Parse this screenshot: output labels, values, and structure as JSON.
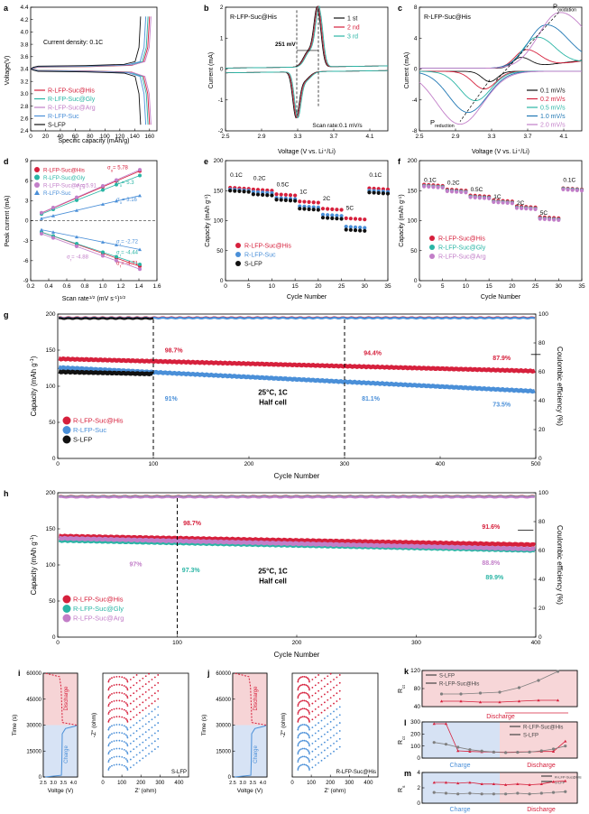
{
  "colors": {
    "red": "#d6203c",
    "pink": "#e04a6a",
    "teal": "#2ab5a5",
    "purple": "#c27ec8",
    "blue": "#4a8fd8",
    "black": "#111111",
    "gray": "#7f7f7f",
    "steel": "#1f77b4"
  },
  "chart_data": [
    {
      "id": "a",
      "type": "line",
      "panel_label": "a",
      "xlabel": "Specific capacity (mAh/g)",
      "ylabel": "Voltage(V)",
      "xlim": [
        0,
        170
      ],
      "ylim": [
        2.4,
        4.4
      ],
      "xticks": [
        "0",
        "20",
        "40",
        "60",
        "80",
        "100",
        "120",
        "140",
        "160"
      ],
      "yticks": [
        "2.4",
        "2.6",
        "2.8",
        "3.0",
        "3.2",
        "3.4",
        "3.6",
        "3.8",
        "4.0",
        "4.2",
        "4.4"
      ],
      "annotation": "Current density: 0.1C",
      "series": [
        {
          "name": "R-LFP-Suc@His",
          "capacity": 160
        },
        {
          "name": "R-LFP-Suc@Gly",
          "capacity": 158
        },
        {
          "name": "R-LFP-Suc@Arg",
          "capacity": 162
        },
        {
          "name": "R-LFP-Suc",
          "capacity": 155
        },
        {
          "name": "S-LFP",
          "capacity": 148
        }
      ]
    },
    {
      "id": "b",
      "type": "line",
      "panel_label": "b",
      "title": "R-LFP-Suc@His",
      "xlabel": "Voltage (V vs. Li⁺/Li)",
      "ylabel": "Current (mA)",
      "xlim": [
        2.5,
        4.3
      ],
      "ylim": [
        -2,
        2
      ],
      "xticks": [
        "2.5",
        "2.9",
        "3.3",
        "3.7",
        "4.1"
      ],
      "yticks": [
        "-2",
        "-1",
        "0",
        "1",
        "2"
      ],
      "annotation": "251 mV",
      "note": "Scan rate:0.1 mV/s",
      "series": [
        {
          "name": "1 st",
          "ox": 3.52,
          "red": 3.28
        },
        {
          "name": "2 nd",
          "ox": 3.53,
          "red": 3.29
        },
        {
          "name": "3 rd",
          "ox": 3.54,
          "red": 3.3
        }
      ]
    },
    {
      "id": "c",
      "type": "line",
      "panel_label": "c",
      "title": "R-LFP-Suc@His",
      "xlabel": "Voltage (V vs. Li⁺/Li)",
      "ylabel": "Current (mA)",
      "xlim": [
        2.5,
        4.3
      ],
      "ylim": [
        -8,
        8
      ],
      "xticks": [
        "2.5",
        "2.9",
        "3.3",
        "3.7",
        "4.1"
      ],
      "yticks": [
        "-8",
        "-4",
        "0",
        "4",
        "8"
      ],
      "oxidation_label": "P",
      "oxidation_sub": "oxidation",
      "reduction_label": "P",
      "reduction_sub": "reduction",
      "series": [
        {
          "name": "0.1 mV/s",
          "ox": 3.62,
          "red": 3.28,
          "peak": 1.4
        },
        {
          "name": "0.2 mV/s",
          "ox": 3.68,
          "red": 3.22,
          "peak": 2.4
        },
        {
          "name": "0.5 mV/s",
          "ox": 3.8,
          "red": 3.12,
          "peak": 4.0
        },
        {
          "name": "1.0 mV/s",
          "ox": 3.9,
          "red": 3.04,
          "peak": 5.6
        },
        {
          "name": "2.0 mV/s",
          "ox": 4.05,
          "red": 2.95,
          "peak": 7.2
        }
      ]
    },
    {
      "id": "d",
      "type": "scatter",
      "panel_label": "d",
      "xlabel": "Scan rate",
      "xlabel_sup": "1/2",
      "xunit": " (mV s",
      "xunit_sup": "-1",
      "xunit_end": ")",
      "xunit_end_sup": "1/2",
      "ylabel": "Peak current (mA)",
      "xlim": [
        0.2,
        1.6
      ],
      "ylim": [
        -9,
        9
      ],
      "xticks": [
        "0.2",
        "0.4",
        "0.6",
        "0.8",
        "1.0",
        "1.2",
        "1.4",
        "1.6"
      ],
      "yticks": [
        "-9",
        "-6",
        "-3",
        "0",
        "3",
        "6",
        "9"
      ],
      "x": [
        0.32,
        0.45,
        0.71,
        1.0,
        1.15,
        1.41
      ],
      "series": [
        {
          "name": "R-LFP-Suc@His",
          "ox_slope": 5.78,
          "red_slope": -4.71,
          "ox_label": "σ",
          "ox_val": "= 5.78",
          "red_label": "σ",
          "red_val": "= -4.71"
        },
        {
          "name": "R-LFP-Suc@Gly",
          "ox_slope": 5.3,
          "red_slope": -4.44,
          "ox_label": "σ",
          "ox_val": "= 5.3",
          "red_label": "σ",
          "red_val": "= -4.44"
        },
        {
          "name": "R-LFP-Suc@Arg",
          "ox_slope": 5.91,
          "red_slope": -4.88,
          "ox_label": "σ",
          "ox_val": "= 5.91",
          "red_label": "σ",
          "red_val": "= -4.88"
        },
        {
          "name": "R-LFP-Suc",
          "ox_slope": 3.16,
          "red_slope": -2.72,
          "ox_label": "σ",
          "ox_val": "= 3.16",
          "red_label": "σ",
          "red_val": "= -2.72"
        }
      ]
    },
    {
      "id": "e",
      "type": "scatter",
      "panel_label": "e",
      "xlabel": "Cycle Number",
      "ylabel": "Capacity (mAh g",
      "ylabel_sup": "-1",
      "ylabel_end": ")",
      "xlim": [
        0,
        35
      ],
      "ylim": [
        0,
        200
      ],
      "xticks": [
        "0",
        "5",
        "10",
        "15",
        "20",
        "25",
        "30",
        "35"
      ],
      "yticks": [
        "0",
        "50",
        "100",
        "150",
        "200"
      ],
      "rates": [
        "0.1C",
        "0.2C",
        "0.5C",
        "1C",
        "2C",
        "5C",
        "0.1C"
      ],
      "series": [
        {
          "name": "R-LFP-Suc@His",
          "values": [
            155,
            152,
            144,
            132,
            120,
            104,
            154
          ]
        },
        {
          "name": "R-LFP-Suc",
          "values": [
            152,
            148,
            138,
            124,
            110,
            90,
            150
          ]
        },
        {
          "name": "S-LFP",
          "values": [
            150,
            144,
            135,
            120,
            105,
            85,
            147
          ]
        }
      ]
    },
    {
      "id": "f",
      "type": "scatter",
      "panel_label": "f",
      "xlabel": "Cycle Number",
      "ylabel": "Capacity (mAh g",
      "ylabel_sup": "-1",
      "ylabel_end": ")",
      "xlim": [
        0,
        35
      ],
      "ylim": [
        0,
        200
      ],
      "xticks": [
        "0",
        "5",
        "10",
        "15",
        "20",
        "25",
        "30",
        "35"
      ],
      "yticks": [
        "0",
        "50",
        "100",
        "150",
        "200"
      ],
      "rates": [
        "0.1C",
        "0.2C",
        "0.5C",
        "1C",
        "2C",
        "5C",
        "0.1C"
      ],
      "series": [
        {
          "name": "R-LFP-Suc@His",
          "values": [
            160,
            152,
            142,
            134,
            124,
            106,
            154
          ]
        },
        {
          "name": "R-LFP-Suc@Gly",
          "values": [
            158,
            150,
            140,
            132,
            122,
            104,
            153
          ]
        },
        {
          "name": "R-LFP-Suc@Arg",
          "values": [
            157,
            149,
            139,
            131,
            121,
            103,
            152
          ]
        }
      ]
    },
    {
      "id": "g",
      "type": "scatter",
      "panel_label": "g",
      "xlabel": "Cycle Number",
      "ylabel": "Capacity (mAh g",
      "ylabel_sup": "-1",
      "ylabel_end": ")",
      "y2label": "Coulombic efficiency (%)",
      "xlim": [
        0,
        500
      ],
      "ylim": [
        0,
        200
      ],
      "y2lim": [
        0,
        100
      ],
      "xticks": [
        "0",
        "100",
        "200",
        "300",
        "400",
        "500"
      ],
      "yticks": [
        "0",
        "50",
        "100",
        "150",
        "200"
      ],
      "y2ticks": [
        "0",
        "20",
        "40",
        "60",
        "80",
        "100"
      ],
      "condition": "25°C, 1C",
      "condition2": "Half cell",
      "series": [
        {
          "name": "R-LFP-Suc@His",
          "start": 138,
          "end": 121,
          "cycles": 500
        },
        {
          "name": "R-LFP-Suc",
          "start": 126,
          "end": 93,
          "cycles": 500
        },
        {
          "name": "S-LFP",
          "start": 120,
          "end": 117,
          "cycles": 100
        }
      ],
      "annotations": [
        "98.7%",
        "94.4%",
        "87.9%",
        "91%",
        "81.1%",
        "73.5%"
      ]
    },
    {
      "id": "h",
      "type": "scatter",
      "panel_label": "h",
      "xlabel": "Cycle Number",
      "ylabel": "Capacity (mAh g",
      "ylabel_sup": "-1",
      "ylabel_end": ")",
      "y2label": "Coulombic efficiency (%)",
      "xlim": [
        0,
        400
      ],
      "ylim": [
        0,
        200
      ],
      "y2lim": [
        0,
        100
      ],
      "xticks": [
        "0",
        "100",
        "200",
        "300",
        "400"
      ],
      "yticks": [
        "0",
        "50",
        "100",
        "150",
        "200"
      ],
      "y2ticks": [
        "0",
        "20",
        "40",
        "60",
        "80",
        "100"
      ],
      "condition": "25°C, 1C",
      "condition2": "Half cell",
      "series": [
        {
          "name": "R-LFP-Suc@His",
          "start": 140,
          "end": 128
        },
        {
          "name": "R-LFP-Suc@Gly",
          "start": 134,
          "end": 120
        },
        {
          "name": "R-LFP-Suc@Arg",
          "start": 137,
          "end": 122
        }
      ],
      "annotations": [
        "98.7%",
        "91.6%",
        "97%",
        "97.3%",
        "88.8%",
        "89.9%"
      ]
    },
    {
      "id": "i",
      "type": "line",
      "panel_label": "i",
      "xlabel_left": "Voltge (V)",
      "xticks_left": [
        "2.5",
        "3.0",
        "3.5",
        "4.0"
      ],
      "ylabel_left": "Time (s)",
      "yticks": [
        "0",
        "15000",
        "30000",
        "45000",
        "60000"
      ],
      "discharge": "Discharge",
      "charge": "Charge",
      "xlabel_right": "Z' (ohm)",
      "ylabel_right": "-Z'' (ohm)",
      "xticks_right": [
        "0",
        "100",
        "200",
        "300",
        "400"
      ],
      "sample": "S-LFP"
    },
    {
      "id": "j",
      "type": "line",
      "panel_label": "j",
      "xlabel_left": "Voltge (V)",
      "xticks_left": [
        "2.5",
        "3.0",
        "3.5",
        "4.0"
      ],
      "ylabel_left": "Time (s)",
      "yticks": [
        "0",
        "15000",
        "30000",
        "45000",
        "60000"
      ],
      "discharge": "Discharge",
      "charge": "Charge",
      "xlabel_right": "Z' (ohm)",
      "ylabel_right": "-Z'' (ohm)",
      "xticks_right": [
        "0",
        "100",
        "200",
        "300",
        "400"
      ],
      "sample": "R-LFP-Suc@His"
    },
    {
      "id": "k",
      "type": "line",
      "panel_label": "k",
      "ylabel": "R",
      "ylabel_sub": "ct",
      "yticks": [
        "40",
        "80",
        "120"
      ],
      "ylim": [
        40,
        120
      ],
      "band": "Discharge",
      "series": [
        {
          "name": "S-LFP",
          "values": [
            68,
            68,
            70,
            72,
            82,
            98,
            118
          ]
        },
        {
          "name": "R-LFP-Suc@His",
          "values": [
            52,
            52,
            50,
            50,
            52,
            54,
            54
          ]
        }
      ]
    },
    {
      "id": "l",
      "type": "line",
      "panel_label": "l",
      "ylabel": "R",
      "ylabel_sub": "ct",
      "yticks": [
        "0",
        "100",
        "200",
        "300"
      ],
      "ylim": [
        0,
        300
      ],
      "band_left": "Charge",
      "band_right": "Discharge",
      "series": [
        {
          "name": "R-LFP-Suc@His",
          "values": [
            285,
            285,
            60,
            55,
            52,
            50,
            48,
            50,
            52,
            55,
            55,
            140
          ]
        },
        {
          "name": "S-LFP",
          "values": [
            130,
            115,
            90,
            70,
            58,
            50,
            45,
            48,
            50,
            60,
            75,
            100
          ]
        }
      ]
    },
    {
      "id": "m",
      "type": "line",
      "panel_label": "m",
      "ylabel": "R",
      "ylabel_sub": "s",
      "yticks": [
        "0",
        "2",
        "4"
      ],
      "ylim": [
        0,
        4
      ],
      "band_left": "Charge",
      "band_right": "Discharge",
      "series": [
        {
          "name": "R-LFP-Suc@His",
          "values": [
            2.7,
            2.7,
            2.6,
            2.7,
            2.5,
            2.5,
            2.4,
            2.5,
            2.4,
            2.5,
            2.8,
            2.9
          ]
        },
        {
          "name": "S-LFP",
          "values": [
            1.4,
            1.3,
            1.2,
            1.3,
            1.2,
            1.2,
            1.2,
            1.3,
            1.2,
            1.3,
            1.4,
            1.5
          ]
        }
      ]
    }
  ]
}
